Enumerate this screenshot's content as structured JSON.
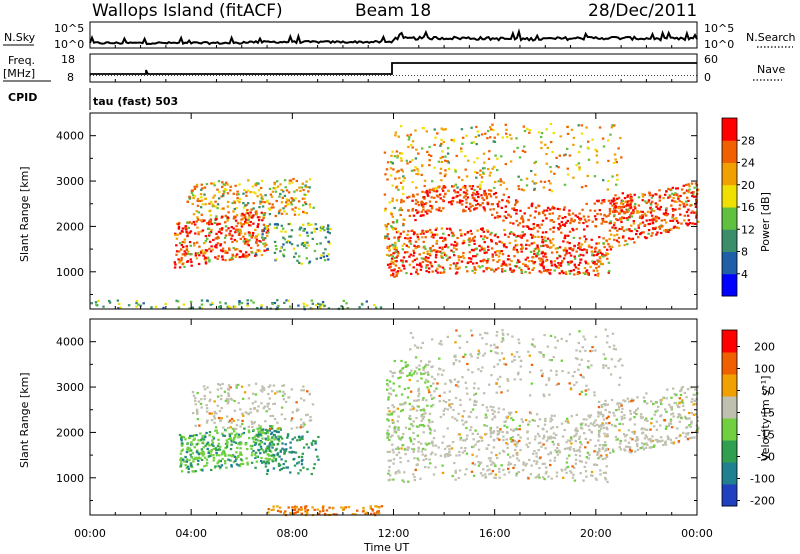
{
  "header": {
    "station": "Wallops Island (fitACF)",
    "beam": "Beam 18",
    "date": "28/Dec/2011"
  },
  "strips": {
    "nsky_label": "N.Sky",
    "nsky_top": "10^5",
    "nsky_bottom": "10^0",
    "nsearch_label": "N.Search",
    "nsearch_top": "10^5",
    "nsearch_bottom": "10^0",
    "freq_label": "Freq.",
    "freq_unit": "[MHz]",
    "freq_top": "18",
    "freq_bottom": "8",
    "nave_label": "Nave",
    "nave_top": "60",
    "nave_bottom": "0",
    "cpid_label": "CPID",
    "cpid_value": "tau (fast) 503"
  },
  "chart_data": [
    {
      "type": "heatmap",
      "title": "",
      "ylabel": "Slant Range [km]",
      "ylim": [
        180,
        4500
      ],
      "y_ticks": [
        "1000",
        "2000",
        "3000",
        "4000"
      ],
      "colorbar_label": "Power [dB]",
      "colorbar_ticks": [
        "4",
        "8",
        "12",
        "16",
        "20",
        "24",
        "28"
      ],
      "colors": [
        "#0000ff",
        "#1f5fa8",
        "#3a8f6a",
        "#60c040",
        "#f0e000",
        "#f0a000",
        "#f06000",
        "#ff0000"
      ]
    },
    {
      "type": "heatmap",
      "title": "",
      "ylabel": "Slant Range [km]",
      "ylim": [
        180,
        4500
      ],
      "y_ticks": [
        "1000",
        "2000",
        "3000",
        "4000"
      ],
      "colorbar_label": "Velocity [m s⁻¹]",
      "colorbar_ticks": [
        "200",
        "100",
        "50",
        "15",
        "-15",
        "-50",
        "-100",
        "-200"
      ],
      "colors": [
        "#2040c0",
        "#208090",
        "#30a050",
        "#70d040",
        "#c0c0b0",
        "#f0a000",
        "#f06000",
        "#ff0000"
      ]
    }
  ],
  "x_axis": {
    "label": "Time UT",
    "ticks": [
      "00:00",
      "04:00",
      "08:00",
      "12:00",
      "16:00",
      "20:00",
      "00:00"
    ]
  }
}
